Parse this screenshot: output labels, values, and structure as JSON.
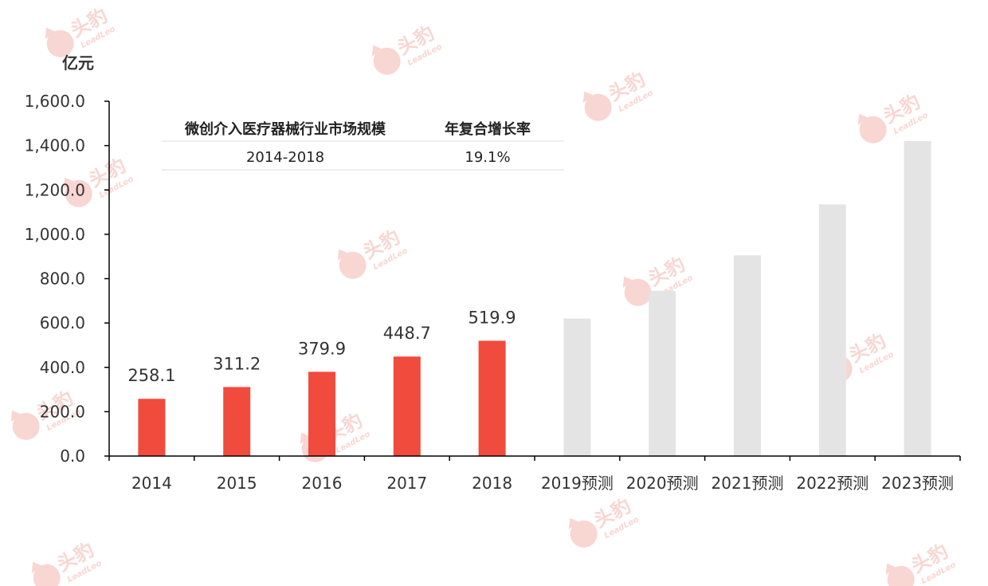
{
  "chart_data": {
    "type": "bar",
    "ylabel": "亿元",
    "ylim": [
      0,
      1600
    ],
    "yticks": [
      "0.0",
      "200.0",
      "400.0",
      "600.0",
      "800.0",
      "1,000.0",
      "1,200.0",
      "1,400.0",
      "1,600.0"
    ],
    "categories": [
      "2014",
      "2015",
      "2016",
      "2017",
      "2018",
      "2019预测",
      "2020预测",
      "2021预测",
      "2022预测",
      "2023预测"
    ],
    "values": [
      258.1,
      311.2,
      379.9,
      448.7,
      519.9,
      620,
      745,
      905,
      1135,
      1420
    ],
    "value_labels": [
      "258.1",
      "311.2",
      "379.9",
      "448.7",
      "519.9",
      "",
      "",
      "",
      "",
      ""
    ],
    "forecast_from_index": 5,
    "colors": {
      "actual": "#f04b3c",
      "forecast": "#e4e4e4",
      "axis": "#000000",
      "table_line": "#e8e8e8",
      "watermark": "#f3b5ae"
    },
    "grid": false,
    "legend": "none",
    "cagr_table": {
      "header": [
        "微创介入医疗器械行业市场规模",
        "年复合增长率"
      ],
      "row": [
        "2014-2018",
        "19.1%"
      ]
    }
  },
  "watermark": {
    "brand": "头豹",
    "sub": "LeadLeo",
    "icon": "leopard-head-icon"
  }
}
